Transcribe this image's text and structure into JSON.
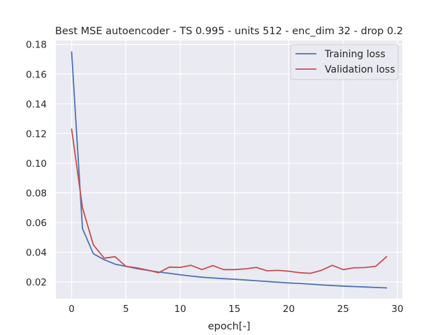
{
  "chart_data": {
    "type": "line",
    "title": "Best MSE autoencoder - TS 0.995 - units 512 - enc_dim 32 - drop 0.2",
    "xlabel": "epoch[-]",
    "ylabel": "",
    "xlim": [
      -1.45,
      30.45
    ],
    "ylim": [
      0.0087,
      0.1827
    ],
    "xticks": [
      0,
      5,
      10,
      15,
      20,
      25,
      30
    ],
    "xtick_labels": [
      "0",
      "5",
      "10",
      "15",
      "20",
      "25",
      "30"
    ],
    "yticks": [
      0.02,
      0.04,
      0.06,
      0.08,
      0.1,
      0.12,
      0.14,
      0.16,
      0.18
    ],
    "ytick_labels": [
      "0.02",
      "0.04",
      "0.06",
      "0.08",
      "0.10",
      "0.12",
      "0.14",
      "0.16",
      "0.18"
    ],
    "grid": true,
    "legend_position": "top-right",
    "x": [
      0,
      1,
      2,
      3,
      4,
      5,
      6,
      7,
      8,
      9,
      10,
      11,
      12,
      13,
      14,
      15,
      16,
      17,
      18,
      19,
      20,
      21,
      22,
      23,
      24,
      25,
      26,
      27,
      28,
      29
    ],
    "series": [
      {
        "name": "Training loss",
        "color": "#4c72b0",
        "values": [
          0.175,
          0.056,
          0.039,
          0.035,
          0.032,
          0.0305,
          0.029,
          0.0278,
          0.0267,
          0.0258,
          0.0248,
          0.024,
          0.0232,
          0.0227,
          0.0222,
          0.0218,
          0.0213,
          0.0208,
          0.0203,
          0.0198,
          0.0193,
          0.019,
          0.0185,
          0.018,
          0.0176,
          0.0172,
          0.0169,
          0.0166,
          0.0163,
          0.016
        ]
      },
      {
        "name": "Validation loss",
        "color": "#c44e52",
        "values": [
          0.123,
          0.07,
          0.045,
          0.036,
          0.037,
          0.0305,
          0.0295,
          0.028,
          0.0262,
          0.03,
          0.0298,
          0.0312,
          0.0283,
          0.031,
          0.0283,
          0.0283,
          0.0288,
          0.0298,
          0.0275,
          0.0278,
          0.0272,
          0.0262,
          0.0258,
          0.0278,
          0.0312,
          0.0283,
          0.0295,
          0.0297,
          0.0305,
          0.037
        ]
      }
    ]
  }
}
